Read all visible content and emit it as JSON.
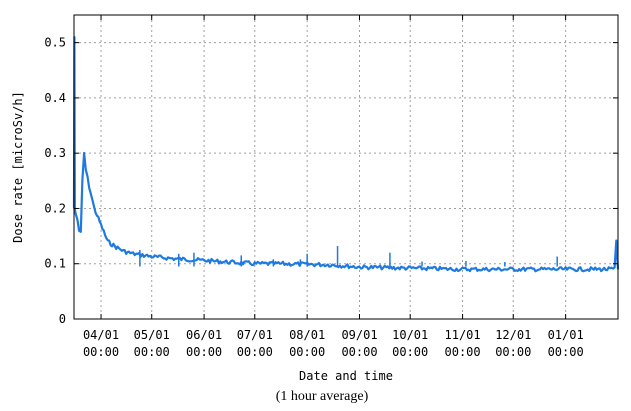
{
  "chart_data": {
    "type": "line",
    "title": "",
    "xlabel": "Date and time",
    "ylabel": "Dose rate [microSv/h]",
    "note": "(1 hour average)",
    "ylim": [
      0,
      0.55
    ],
    "xlim": [
      "03/16 00:00",
      "02/01 00:00"
    ],
    "yticks": [
      "0",
      "0.1",
      "0.2",
      "0.3",
      "0.4",
      "0.5"
    ],
    "ytick_values": [
      0,
      0.1,
      0.2,
      0.3,
      0.4,
      0.5
    ],
    "xticks": [
      {
        "date": "04/01",
        "time": "00:00"
      },
      {
        "date": "05/01",
        "time": "00:00"
      },
      {
        "date": "06/01",
        "time": "00:00"
      },
      {
        "date": "07/01",
        "time": "00:00"
      },
      {
        "date": "08/01",
        "time": "00:00"
      },
      {
        "date": "09/01",
        "time": "00:00"
      },
      {
        "date": "10/01",
        "time": "00:00"
      },
      {
        "date": "11/01",
        "time": "00:00"
      },
      {
        "date": "12/01",
        "time": "00:00"
      },
      {
        "date": "01/01",
        "time": "00:00"
      }
    ],
    "grid": true,
    "series": [
      {
        "color": "#1f7ae0",
        "points": [
          {
            "x": "03/16",
            "y": 0.2
          },
          {
            "x": "03/16 06:00",
            "y": 0.51
          },
          {
            "x": "03/16 12:00",
            "y": 0.2
          },
          {
            "x": "03/17",
            "y": 0.19
          },
          {
            "x": "03/18",
            "y": 0.18
          },
          {
            "x": "03/19",
            "y": 0.16
          },
          {
            "x": "03/20",
            "y": 0.155
          },
          {
            "x": "03/21",
            "y": 0.25
          },
          {
            "x": "03/22",
            "y": 0.3
          },
          {
            "x": "03/23",
            "y": 0.27
          },
          {
            "x": "03/25",
            "y": 0.24
          },
          {
            "x": "03/28",
            "y": 0.2
          },
          {
            "x": "04/01",
            "y": 0.17
          },
          {
            "x": "04/05",
            "y": 0.14
          },
          {
            "x": "04/10",
            "y": 0.13
          },
          {
            "x": "04/15",
            "y": 0.122
          },
          {
            "x": "04/20",
            "y": 0.118
          },
          {
            "x": "05/01",
            "y": 0.113
          },
          {
            "x": "05/15",
            "y": 0.109
          },
          {
            "x": "06/01",
            "y": 0.106
          },
          {
            "x": "06/15",
            "y": 0.103
          },
          {
            "x": "07/01",
            "y": 0.1
          },
          {
            "x": "07/15",
            "y": 0.1
          },
          {
            "x": "08/01",
            "y": 0.099
          },
          {
            "x": "08/15",
            "y": 0.098
          },
          {
            "x": "09/01",
            "y": 0.094
          },
          {
            "x": "09/15",
            "y": 0.093
          },
          {
            "x": "10/01",
            "y": 0.092
          },
          {
            "x": "10/15",
            "y": 0.091
          },
          {
            "x": "11/01",
            "y": 0.09
          },
          {
            "x": "11/15",
            "y": 0.09
          },
          {
            "x": "12/01",
            "y": 0.09
          },
          {
            "x": "12/15",
            "y": 0.09
          },
          {
            "x": "01/01",
            "y": 0.09
          },
          {
            "x": "01/15",
            "y": 0.09
          },
          {
            "x": "01/30",
            "y": 0.09
          },
          {
            "x": "01/31",
            "y": 0.14
          },
          {
            "x": "02/01",
            "y": 0.09
          }
        ],
        "spikes": [
          {
            "x": "04/24",
            "y": 0.125
          },
          {
            "x": "05/17",
            "y": 0.118
          },
          {
            "x": "05/26",
            "y": 0.12
          },
          {
            "x": "06/23",
            "y": 0.115
          },
          {
            "x": "07/12",
            "y": 0.108
          },
          {
            "x": "07/28",
            "y": 0.108
          },
          {
            "x": "08/01",
            "y": 0.118
          },
          {
            "x": "08/19",
            "y": 0.132
          },
          {
            "x": "09/19",
            "y": 0.12
          },
          {
            "x": "10/08",
            "y": 0.104
          },
          {
            "x": "11/03",
            "y": 0.105
          },
          {
            "x": "11/26",
            "y": 0.103
          },
          {
            "x": "12/27",
            "y": 0.113
          }
        ]
      }
    ]
  }
}
